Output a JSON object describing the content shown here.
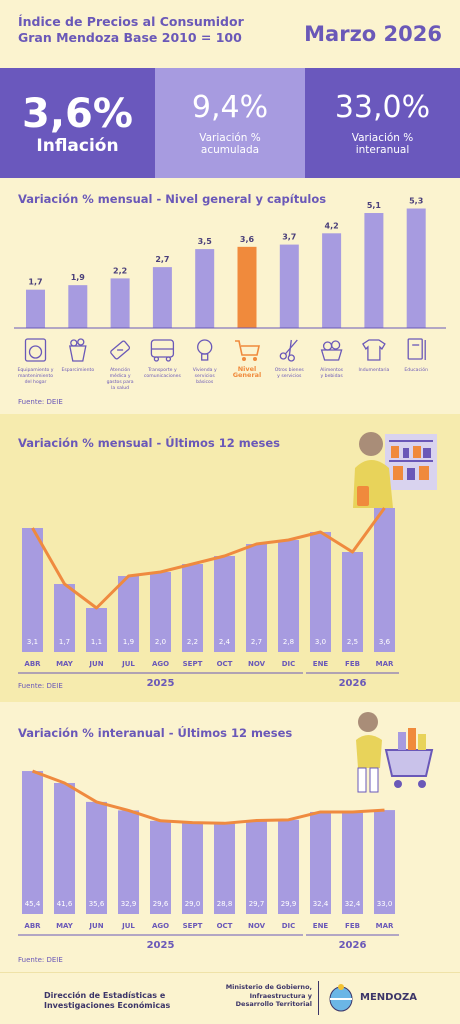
{
  "header": {
    "title_line1": "Índice de Precios al Consumidor",
    "title_line2": "Gran Mendoza Base 2010 = 100",
    "date": "Marzo 2026"
  },
  "kpis": [
    {
      "value": "3,6%",
      "label_line1": "Inflación",
      "label_line2": ""
    },
    {
      "value": "9,4%",
      "label_line1": "Variación %",
      "label_line2": "acumulada"
    },
    {
      "value": "33,0%",
      "label_line1": "Variación %",
      "label_line2": "interanual"
    }
  ],
  "colors": {
    "purple_dark": "#6a58bd",
    "purple_light": "#a79be0",
    "bar": "#a79be0",
    "bar_highlight": "#f08a3c",
    "line": "#ef8a3f",
    "bg": "#fbf3cf"
  },
  "section1": {
    "title": "Variación % mensual - Nivel general y capítulos",
    "source": "Fuente: DEIE"
  },
  "section2": {
    "title": "Variación % mensual - Últimos 12 meses",
    "source": "Fuente: DEIE"
  },
  "section3": {
    "title": "Variación % interanual - Últimos 12 meses",
    "source": "Fuente: DEIE"
  },
  "footer": {
    "org_line1": "Dirección de Estadísticas e",
    "org_line2": "Investigaciones Económicas",
    "ministry_line1": "Ministerio de Gobierno,",
    "ministry_line2": "Infraestructura y",
    "ministry_line3": "Desarrollo Territorial",
    "province": "MENDOZA"
  },
  "chart_data": [
    {
      "type": "bar",
      "title": "Variación % mensual - Nivel general y capítulos",
      "categories": [
        [
          "Equipamiento y",
          "mantenimiento",
          "del hogar"
        ],
        [
          "Esparcimiento"
        ],
        [
          "Atención",
          "médica y",
          "gastos para",
          "la salud"
        ],
        [
          "Transporte y",
          "comunicaciones"
        ],
        [
          "Vivienda y",
          "servicios",
          "básicos"
        ],
        [
          "Nivel",
          "General"
        ],
        [
          "Otros bienes",
          "y servicios"
        ],
        [
          "Alimentos",
          "y bebidas"
        ],
        [
          "Indumentaria"
        ],
        [
          "Educación"
        ]
      ],
      "values": [
        1.7,
        1.9,
        2.2,
        2.7,
        3.5,
        3.6,
        3.7,
        4.2,
        5.1,
        5.3
      ],
      "value_labels": [
        "1,7",
        "1,9",
        "2,2",
        "2,7",
        "3,5",
        "3,6",
        "3,7",
        "4,2",
        "5,1",
        "5,3"
      ],
      "icons": [
        "washing-machine-icon",
        "popcorn-icon",
        "medical-icon",
        "bus-icon",
        "bulb-icon",
        "shopping-cart-icon",
        "scissors-icon",
        "food-basket-icon",
        "shirt-icon",
        "book-icon"
      ],
      "highlight_index": 5,
      "ylim": [
        0,
        5.5
      ]
    },
    {
      "type": "bar",
      "title": "Variación % mensual - Últimos 12 meses",
      "categories": [
        "ABR",
        "MAY",
        "JUN",
        "JUL",
        "AGO",
        "SEPT",
        "OCT",
        "NOV",
        "DIC",
        "ENE",
        "FEB",
        "MAR"
      ],
      "values": [
        3.1,
        1.7,
        1.1,
        1.9,
        2.0,
        2.2,
        2.4,
        2.7,
        2.8,
        3.0,
        2.5,
        3.6
      ],
      "value_labels": [
        "3,1",
        "1,7",
        "1,1",
        "1,9",
        "2,0",
        "2,2",
        "2,4",
        "2,7",
        "2,8",
        "3,0",
        "2,5",
        "3,6"
      ],
      "years": [
        {
          "label": "2025",
          "from": 0,
          "to": 8
        },
        {
          "label": "2026",
          "from": 9,
          "to": 11
        }
      ],
      "ylim": [
        0,
        3.8
      ]
    },
    {
      "type": "bar",
      "title": "Variación % interanual - Últimos 12 meses",
      "categories": [
        "ABR",
        "MAY",
        "JUN",
        "JUL",
        "AGO",
        "SEPT",
        "OCT",
        "NOV",
        "DIC",
        "ENE",
        "FEB",
        "MAR"
      ],
      "values": [
        45.4,
        41.6,
        35.6,
        32.9,
        29.6,
        29.0,
        28.8,
        29.7,
        29.9,
        32.4,
        32.4,
        33.0
      ],
      "value_labels": [
        "45,4",
        "41,6",
        "35,6",
        "32,9",
        "29,6",
        "29,0",
        "28,8",
        "29,7",
        "29,9",
        "32,4",
        "32,4",
        "33,0"
      ],
      "years": [
        {
          "label": "2025",
          "from": 0,
          "to": 8
        },
        {
          "label": "2026",
          "from": 9,
          "to": 11
        }
      ],
      "ylim": [
        0,
        47
      ]
    }
  ]
}
